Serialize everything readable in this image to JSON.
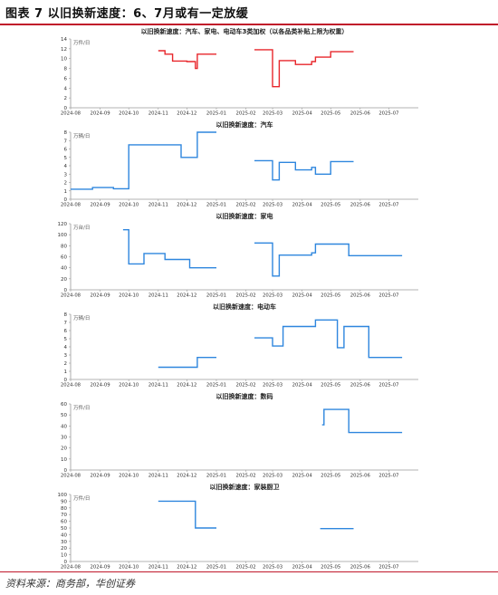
{
  "header": {
    "title": "图表 7   以旧换新速度：6、7月或有一定放缓"
  },
  "footer": {
    "source": "资料来源：商务部，华创证券"
  },
  "colors": {
    "brand_red": "#c0182a",
    "series_red": "#e8262b",
    "series_blue": "#2e86de"
  },
  "x_ticks": [
    "2024-08",
    "2024-09",
    "2024-10",
    "2024-11",
    "2024-12",
    "2025-01",
    "2025-02",
    "2025-03",
    "2025-04",
    "2025-05",
    "2025-06",
    "2025-07"
  ],
  "chart_data": [
    {
      "type": "line",
      "title": "以旧换新速度：汽车、家电、电动车3类加权（以各品类补贴上限为权重）",
      "unit_label": "万件/日",
      "ylim": [
        0,
        14
      ],
      "yticks": [
        0,
        2,
        4,
        6,
        8,
        10,
        12,
        14
      ],
      "color": "#e8262b",
      "segments": [
        [
          [
            "2024-11-01",
            11.6
          ],
          [
            "2024-11-08",
            11.6
          ],
          [
            "2024-11-08",
            10.9
          ],
          [
            "2024-11-16",
            10.9
          ],
          [
            "2024-11-16",
            9.5
          ],
          [
            "2024-12-01",
            9.5
          ],
          [
            "2024-12-01",
            9.4
          ],
          [
            "2024-12-10",
            9.4
          ],
          [
            "2024-12-10",
            8.0
          ],
          [
            "2024-12-12",
            8.0
          ],
          [
            "2024-12-12",
            10.9
          ],
          [
            "2025-01-01",
            10.9
          ]
        ],
        [
          [
            "2025-02-10",
            11.8
          ],
          [
            "2025-03-01",
            11.8
          ],
          [
            "2025-03-01",
            4.3
          ],
          [
            "2025-03-08",
            4.3
          ],
          [
            "2025-03-08",
            9.6
          ],
          [
            "2025-03-25",
            9.6
          ],
          [
            "2025-03-25",
            8.8
          ],
          [
            "2025-04-11",
            8.8
          ],
          [
            "2025-04-11",
            9.4
          ],
          [
            "2025-04-15",
            9.4
          ],
          [
            "2025-04-15",
            10.3
          ],
          [
            "2025-05-01",
            10.3
          ],
          [
            "2025-05-01",
            11.4
          ],
          [
            "2025-05-25",
            11.4
          ]
        ]
      ]
    },
    {
      "type": "line",
      "title": "以旧换新速度：汽车",
      "unit_label": "万辆/日",
      "ylim": [
        0,
        8
      ],
      "yticks": [
        0,
        1,
        2,
        3,
        4,
        5,
        6,
        7,
        8
      ],
      "color": "#2e86de",
      "segments": [
        [
          [
            "2024-08-01",
            1.2
          ],
          [
            "2024-08-24",
            1.2
          ],
          [
            "2024-08-24",
            1.4
          ],
          [
            "2024-09-15",
            1.4
          ],
          [
            "2024-09-15",
            1.25
          ],
          [
            "2024-10-01",
            1.25
          ],
          [
            "2024-10-01",
            6.5
          ],
          [
            "2024-11-25",
            6.5
          ],
          [
            "2024-11-25",
            5.0
          ],
          [
            "2024-12-12",
            5.0
          ],
          [
            "2024-12-12",
            8.0
          ],
          [
            "2025-01-01",
            8.0
          ]
        ],
        [
          [
            "2025-02-10",
            4.6
          ],
          [
            "2025-03-01",
            4.6
          ],
          [
            "2025-03-01",
            2.3
          ],
          [
            "2025-03-08",
            2.3
          ],
          [
            "2025-03-08",
            4.4
          ],
          [
            "2025-03-25",
            4.4
          ],
          [
            "2025-03-25",
            3.5
          ],
          [
            "2025-04-11",
            3.5
          ],
          [
            "2025-04-11",
            3.8
          ],
          [
            "2025-04-15",
            3.8
          ],
          [
            "2025-04-15",
            3.0
          ],
          [
            "2025-05-01",
            3.0
          ],
          [
            "2025-05-01",
            4.5
          ],
          [
            "2025-05-25",
            4.5
          ]
        ]
      ]
    },
    {
      "type": "line",
      "title": "以旧换新速度：家电",
      "unit_label": "万台/日",
      "ylim": [
        0,
        120
      ],
      "yticks": [
        0,
        20,
        40,
        60,
        80,
        100,
        120
      ],
      "color": "#2e86de",
      "segments": [
        [
          [
            "2024-09-25",
            109
          ],
          [
            "2024-10-01",
            109
          ],
          [
            "2024-10-01",
            47
          ],
          [
            "2024-10-17",
            47
          ],
          [
            "2024-10-17",
            66
          ],
          [
            "2024-11-08",
            66
          ],
          [
            "2024-11-08",
            55
          ],
          [
            "2024-12-04",
            55
          ],
          [
            "2024-12-04",
            40
          ],
          [
            "2025-01-01",
            40
          ]
        ],
        [
          [
            "2025-02-10",
            85
          ],
          [
            "2025-03-01",
            85
          ],
          [
            "2025-03-01",
            25
          ],
          [
            "2025-03-08",
            25
          ],
          [
            "2025-03-08",
            63
          ],
          [
            "2025-04-11",
            63
          ],
          [
            "2025-04-11",
            67
          ],
          [
            "2025-04-15",
            67
          ],
          [
            "2025-04-15",
            83
          ],
          [
            "2025-05-20",
            83
          ],
          [
            "2025-05-20",
            62
          ],
          [
            "2025-07-15",
            62
          ]
        ]
      ]
    },
    {
      "type": "line",
      "title": "以旧换新速度：电动车",
      "unit_label": "万辆/日",
      "ylim": [
        0,
        8
      ],
      "yticks": [
        0,
        1,
        2,
        3,
        4,
        5,
        6,
        7,
        8
      ],
      "color": "#2e86de",
      "segments": [
        [
          [
            "2024-11-01",
            1.5
          ],
          [
            "2024-12-12",
            1.5
          ],
          [
            "2024-12-12",
            2.7
          ],
          [
            "2025-01-01",
            2.7
          ]
        ],
        [
          [
            "2025-02-10",
            5.1
          ],
          [
            "2025-03-01",
            5.1
          ],
          [
            "2025-03-01",
            4.1
          ],
          [
            "2025-03-12",
            4.1
          ],
          [
            "2025-03-12",
            6.5
          ],
          [
            "2025-04-15",
            6.5
          ],
          [
            "2025-04-15",
            7.3
          ],
          [
            "2025-05-08",
            7.3
          ],
          [
            "2025-05-08",
            3.9
          ],
          [
            "2025-05-15",
            3.9
          ],
          [
            "2025-05-15",
            6.5
          ],
          [
            "2025-06-10",
            6.5
          ],
          [
            "2025-06-10",
            2.7
          ],
          [
            "2025-07-15",
            2.7
          ]
        ]
      ]
    },
    {
      "type": "line",
      "title": "以旧换新速度：数码",
      "unit_label": "万件/日",
      "ylim": [
        0,
        60
      ],
      "yticks": [
        0,
        10,
        20,
        30,
        40,
        50,
        60
      ],
      "color": "#2e86de",
      "segments": [
        [
          [
            "2025-04-22",
            41
          ],
          [
            "2025-04-24",
            41
          ],
          [
            "2025-04-24",
            55
          ],
          [
            "2025-05-20",
            55
          ],
          [
            "2025-05-20",
            34
          ],
          [
            "2025-07-15",
            34
          ]
        ]
      ]
    },
    {
      "type": "line",
      "title": "以旧换新速度：家装厨卫",
      "unit_label": "万件/日",
      "ylim": [
        0,
        100
      ],
      "yticks": [
        0,
        10,
        20,
        30,
        40,
        50,
        60,
        70,
        80,
        90,
        100
      ],
      "color": "#2e86de",
      "segments": [
        [
          [
            "2024-11-01",
            90
          ],
          [
            "2024-12-10",
            90
          ],
          [
            "2024-12-10",
            50
          ],
          [
            "2025-01-01",
            50
          ]
        ],
        [
          [
            "2025-04-20",
            49
          ],
          [
            "2025-05-25",
            49
          ]
        ]
      ]
    }
  ]
}
